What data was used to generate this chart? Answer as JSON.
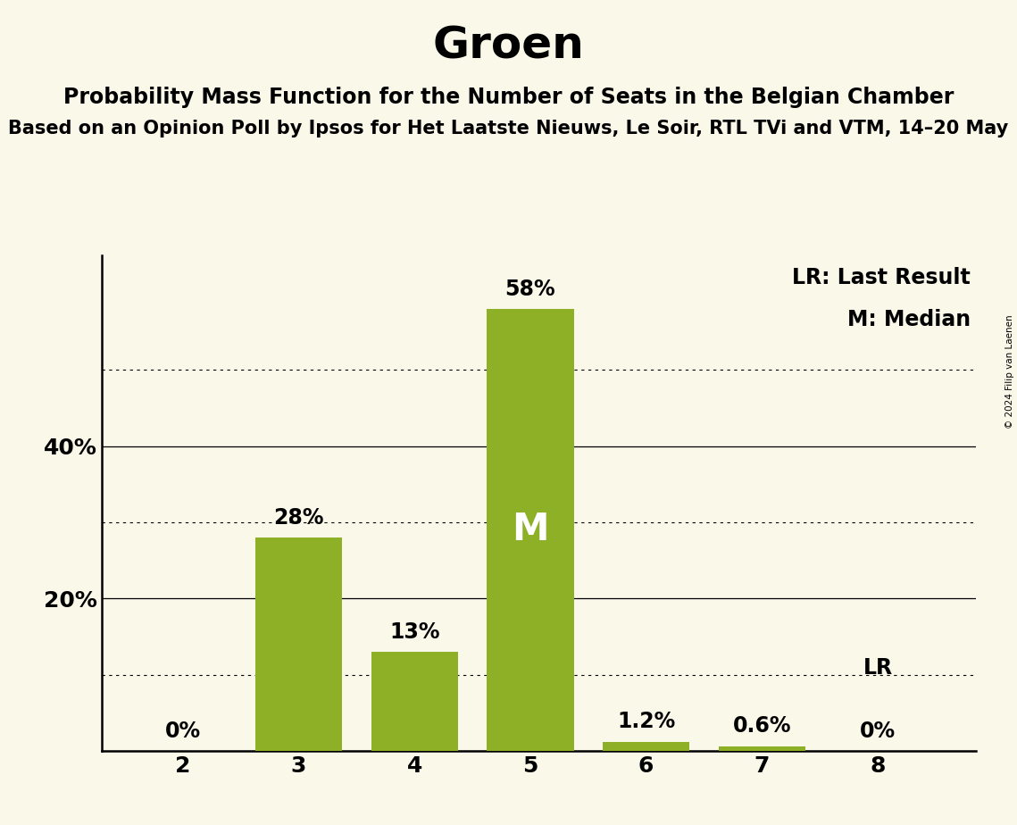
{
  "title": "Groen",
  "subtitle": "Probability Mass Function for the Number of Seats in the Belgian Chamber",
  "sub_subtitle": "Based on an Opinion Poll by Ipsos for Het Laatste Nieuws, Le Soir, RTL TVi and VTM, 14–20 May",
  "copyright": "© 2024 Filip van Laenen",
  "categories": [
    2,
    3,
    4,
    5,
    6,
    7,
    8
  ],
  "values": [
    0.0,
    28.0,
    13.0,
    58.0,
    1.2,
    0.6,
    0.0
  ],
  "bar_labels": [
    "0%",
    "28%",
    "13%",
    "58%",
    "1.2%",
    "0.6%",
    "0%"
  ],
  "bar_color": "#8db026",
  "background_color": "#faf8e8",
  "median_bar": 5,
  "lr_bar": 8,
  "ylim": [
    0,
    65
  ],
  "yticks_solid": [
    20,
    40
  ],
  "yticks_dotted": [
    10,
    30,
    50
  ],
  "legend_lr": "LR: Last Result",
  "legend_m": "M: Median",
  "title_fontsize": 36,
  "subtitle_fontsize": 17,
  "sub_subtitle_fontsize": 15,
  "label_fontsize": 17,
  "axis_label_fontsize": 18
}
